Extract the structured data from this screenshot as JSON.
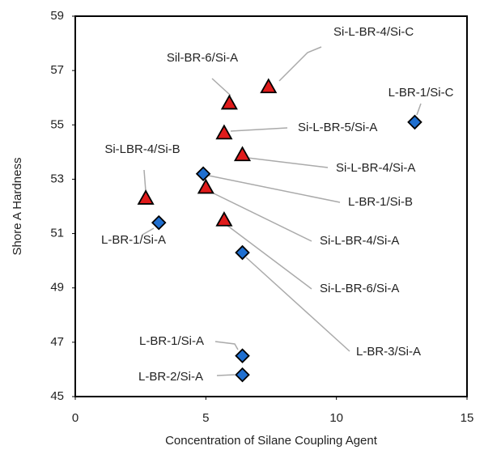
{
  "chart_data": {
    "type": "scatter",
    "xlabel": "Concentration of Silane Coupling Agent",
    "ylabel": "Shore A Hardness",
    "xlim": [
      0,
      15
    ],
    "xticks": [
      0,
      5,
      10,
      15
    ],
    "ylim": [
      45,
      59
    ],
    "yticks": [
      45,
      47,
      49,
      51,
      53,
      55,
      57,
      59
    ],
    "grid": false,
    "series": [
      {
        "marker": "diamond",
        "color": "#1f6fd0",
        "x": [
          3.2,
          4.9,
          6.4,
          6.4,
          6.4,
          13.0
        ],
        "values": [
          51.4,
          53.2,
          50.3,
          46.5,
          45.8,
          55.1
        ],
        "labels": [
          "L-BR-1/Si-A",
          "L-BR-1/Si-B",
          "L-BR-3/Si-A",
          "L-BR-1/Si-A",
          "L-BR-2/Si-A",
          "L-BR-1/Si-C"
        ]
      },
      {
        "marker": "triangle",
        "color": "#e01b1b",
        "x": [
          2.7,
          5.0,
          5.7,
          5.7,
          5.9,
          6.4,
          7.4
        ],
        "values": [
          52.3,
          52.7,
          51.5,
          54.7,
          55.8,
          53.9,
          56.4
        ],
        "labels": [
          "Si-LBR-4/Si-B",
          "Si-L-BR-4/Si-A",
          "Si-L-BR-6/Si-A",
          "Si-L-BR-5/Si-A",
          "Sil-BR-6/Si-A",
          "Si-L-BR-4/Si-A",
          "Si-L-BR-4/Si-C"
        ]
      }
    ]
  }
}
